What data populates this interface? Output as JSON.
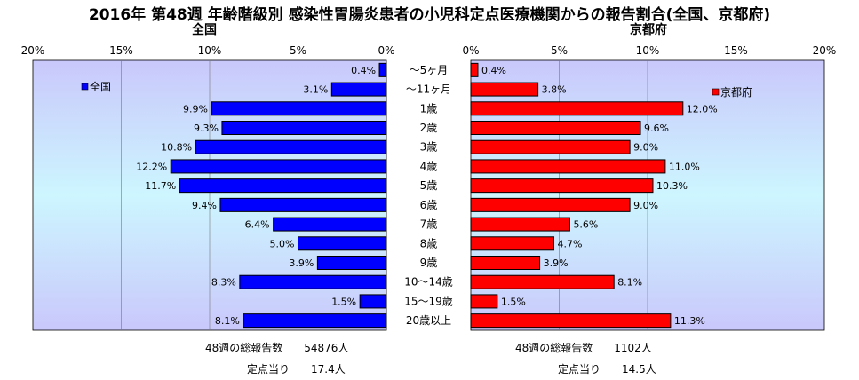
{
  "title": "2016年 第48週 年齢階級別 感染性胃腸炎患者の小児科定点医療機関からの報告割合(全国、京都府)",
  "colors": {
    "left_bar": "#0000ff",
    "right_bar": "#ff0000",
    "bar_border": "#000000"
  },
  "chart_data": [
    {
      "type": "bar",
      "orientation": "horizontal",
      "direction": "leftward",
      "title": "全国",
      "legend": "全国",
      "xlim": [
        0,
        20
      ],
      "xticks": [
        "20%",
        "15%",
        "10%",
        "5%",
        "0%"
      ],
      "categories": [
        "～5ヶ月",
        "～11ヶ月",
        "1歳",
        "2歳",
        "3歳",
        "4歳",
        "5歳",
        "6歳",
        "7歳",
        "8歳",
        "9歳",
        "10～14歳",
        "15～19歳",
        "20歳以上"
      ],
      "values": [
        0.4,
        3.1,
        9.9,
        9.3,
        10.8,
        12.2,
        11.7,
        9.4,
        6.4,
        5.0,
        3.9,
        8.3,
        1.5,
        8.1
      ],
      "labels": [
        "0.4%",
        "3.1%",
        "9.9%",
        "9.3%",
        "10.8%",
        "12.2%",
        "11.7%",
        "9.4%",
        "6.4%",
        "5.0%",
        "3.9%",
        "8.3%",
        "1.5%",
        "8.1%"
      ]
    },
    {
      "type": "bar",
      "orientation": "horizontal",
      "direction": "rightward",
      "title": "京都府",
      "legend": "京都府",
      "xlim": [
        0,
        20
      ],
      "xticks": [
        "0%",
        "5%",
        "10%",
        "15%",
        "20%"
      ],
      "categories": [
        "～5ヶ月",
        "～11ヶ月",
        "1歳",
        "2歳",
        "3歳",
        "4歳",
        "5歳",
        "6歳",
        "7歳",
        "8歳",
        "9歳",
        "10～14歳",
        "15～19歳",
        "20歳以上"
      ],
      "values": [
        0.4,
        3.8,
        12.0,
        9.6,
        9.0,
        11.0,
        10.3,
        9.0,
        5.6,
        4.7,
        3.9,
        8.1,
        1.5,
        11.3
      ],
      "labels": [
        "0.4%",
        "3.8%",
        "12.0%",
        "9.6%",
        "9.0%",
        "11.0%",
        "10.3%",
        "9.0%",
        "5.6%",
        "4.7%",
        "3.9%",
        "8.1%",
        "1.5%",
        "11.3%"
      ]
    }
  ],
  "footer": {
    "left_total": "48週の総報告数　　54876人",
    "left_per_site": "定点当り　　17.4人",
    "right_total": "48週の総報告数　　1102人",
    "right_per_site": "定点当り　　14.5人"
  }
}
